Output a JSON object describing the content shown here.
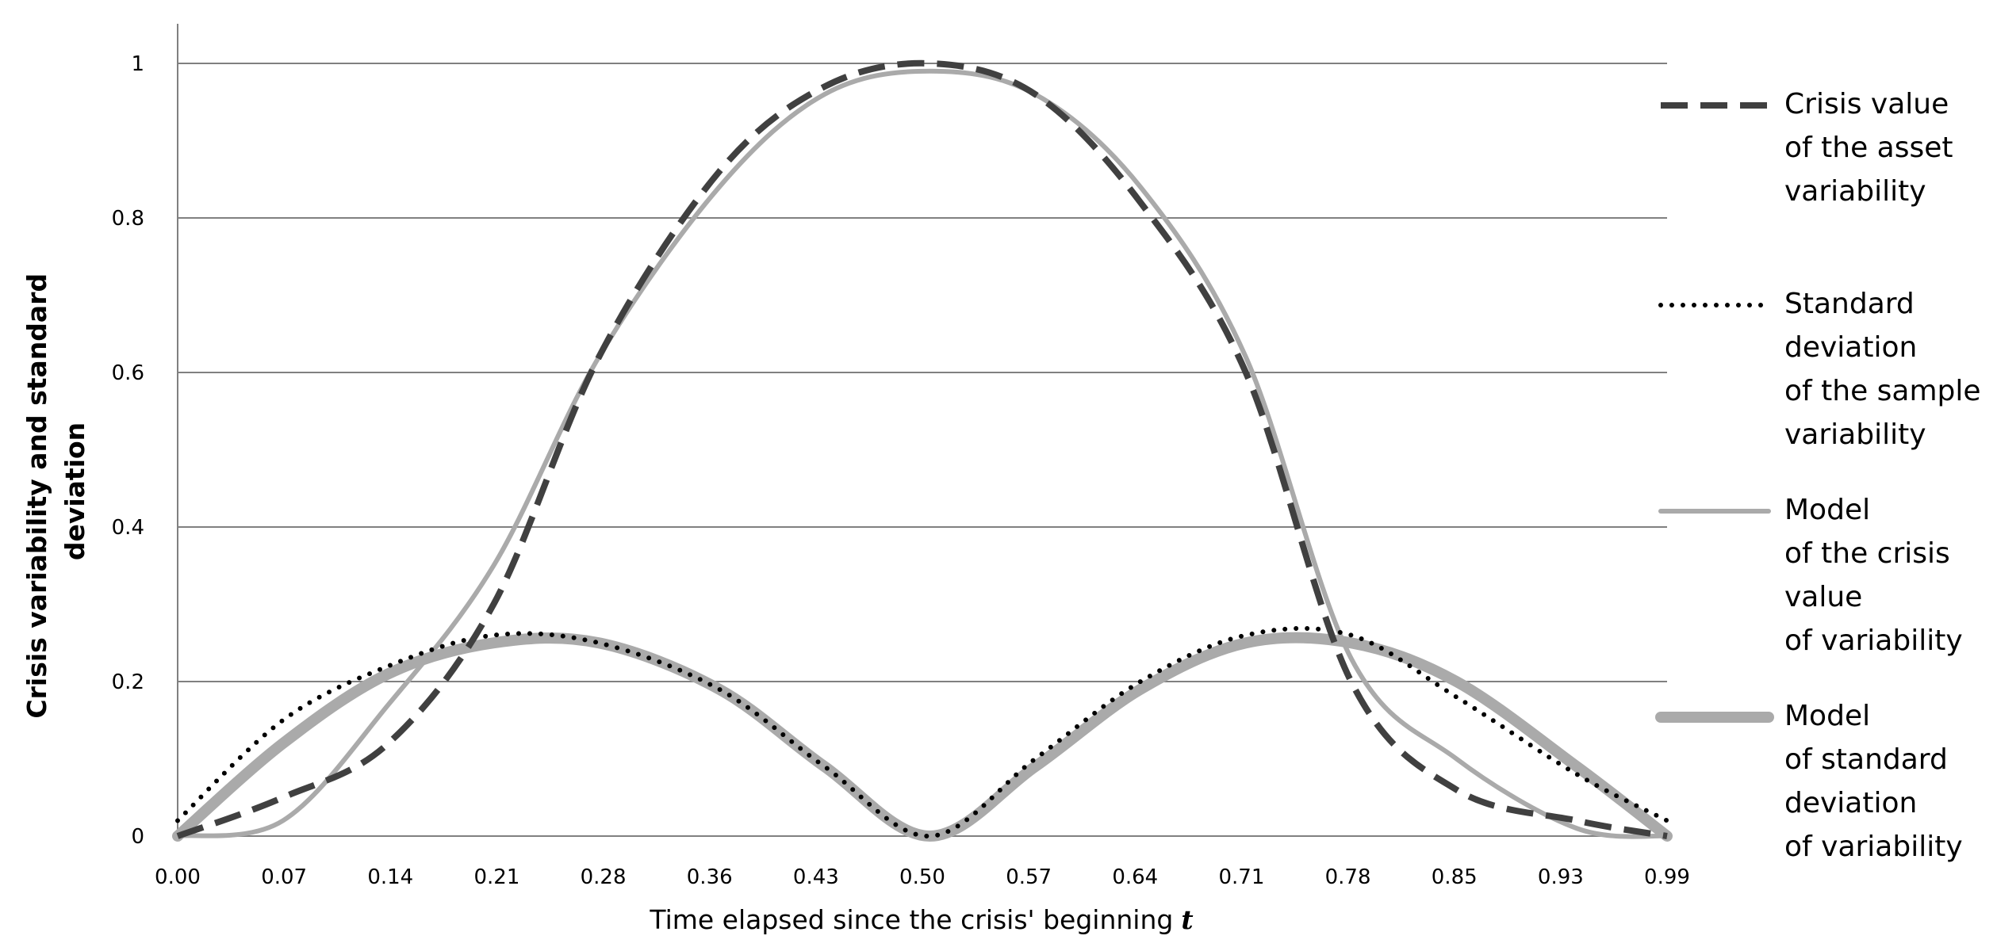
{
  "chart_data": {
    "type": "line",
    "xlabel": "Time elapsed since the crisis' beginning",
    "xlabel_var": "t",
    "ylabel": [
      "Crisis variability and standard",
      "deviation"
    ],
    "ylim": [
      0,
      1
    ],
    "yticks": [
      "0",
      "0.2",
      "0.4",
      "0.6",
      "0.8",
      "1"
    ],
    "xticks": [
      "0.00",
      "0.07",
      "0.14",
      "0.21",
      "0.28",
      "0.36",
      "0.43",
      "0.50",
      "0.57",
      "0.64",
      "0.71",
      "0.78",
      "0.85",
      "0.93",
      "0.99"
    ],
    "grid": "horizontal",
    "legend_position": "right",
    "x": [
      0.0,
      0.07,
      0.14,
      0.21,
      0.28,
      0.36,
      0.43,
      0.5,
      0.57,
      0.64,
      0.71,
      0.78,
      0.85,
      0.93,
      0.99
    ],
    "series": [
      {
        "name": [
          "Crisis value",
          "of the asset",
          "variability"
        ],
        "style": "dashed",
        "color": "#404040",
        "values": [
          0.0,
          0.05,
          0.12,
          0.3,
          0.62,
          0.86,
          0.97,
          1.0,
          0.96,
          0.82,
          0.6,
          0.2,
          0.06,
          0.02,
          0.0
        ]
      },
      {
        "name": [
          "Standard",
          "deviation",
          "of the sample",
          "variability"
        ],
        "style": "dotted",
        "color": "#000000",
        "values": [
          0.02,
          0.15,
          0.22,
          0.26,
          0.25,
          0.19,
          0.09,
          0.0,
          0.1,
          0.2,
          0.26,
          0.26,
          0.18,
          0.08,
          0.02
        ]
      },
      {
        "name": [
          "Model",
          "of the crisis",
          "value",
          "of variability"
        ],
        "style": "solid-thin",
        "color": "#aaaaaa",
        "values": [
          0.0,
          0.02,
          0.17,
          0.35,
          0.62,
          0.84,
          0.96,
          0.99,
          0.96,
          0.84,
          0.62,
          0.23,
          0.1,
          0.01,
          0.0
        ]
      },
      {
        "name": [
          "Model",
          "of standard",
          "deviation",
          "of variability"
        ],
        "style": "solid-thick",
        "color": "#aaaaaa",
        "values": [
          0.0,
          0.12,
          0.21,
          0.25,
          0.25,
          0.19,
          0.09,
          0.0,
          0.09,
          0.19,
          0.25,
          0.25,
          0.2,
          0.09,
          0.0
        ]
      }
    ]
  }
}
